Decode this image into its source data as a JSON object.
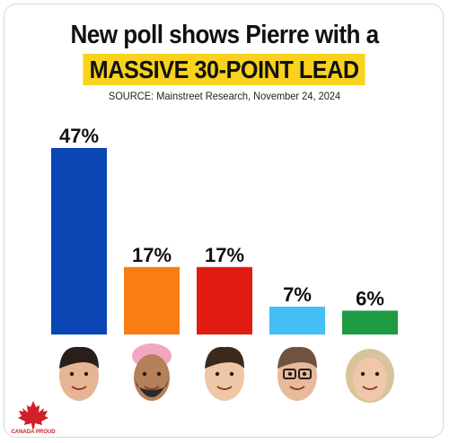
{
  "header": {
    "title_line1": "New poll shows Pierre with a",
    "title_line2": "MASSIVE 30-POINT LEAD",
    "source": "SOURCE: Mainstreet Research, November 24, 2024"
  },
  "logo": {
    "text": "CANADA PROUD",
    "color": "#d0202a"
  },
  "colors": {
    "highlight": "#f8d21d"
  },
  "chart_data": {
    "type": "bar",
    "categories": [
      "",
      "",
      "",
      "",
      ""
    ],
    "values": [
      47,
      17,
      17,
      7,
      6
    ],
    "labels": [
      "47%",
      "17%",
      "17%",
      "7%",
      "6%"
    ],
    "colors": [
      "#0a46b4",
      "#f77d14",
      "#e21b12",
      "#45bdf7",
      "#1e9a43"
    ],
    "icons": [
      "pierre-poilievre-portrait-icon",
      "jagmeet-singh-portrait-icon",
      "justin-trudeau-portrait-icon",
      "yves-francois-blanchet-portrait-icon",
      "elizabeth-may-portrait-icon"
    ],
    "ylim": [
      0,
      47
    ],
    "grid": false,
    "title": "New poll shows Pierre with a MASSIVE 30-POINT LEAD"
  }
}
